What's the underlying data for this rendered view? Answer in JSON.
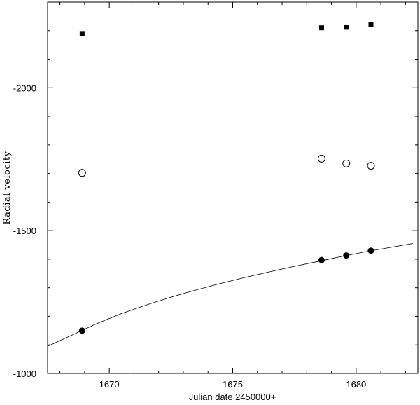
{
  "chart_data": {
    "type": "scatter",
    "title": "",
    "xlabel": "Julian date 2450000+",
    "ylabel": "Radial  velocity",
    "xlim": [
      1667.5,
      1682.5
    ],
    "ylim": [
      -1000,
      -2300
    ],
    "y_inverted": true,
    "x_ticks": [
      1670,
      1675,
      1680
    ],
    "x_tick_labels": [
      "1670",
      "1675",
      "1680"
    ],
    "y_ticks": [
      -1000,
      -1500,
      -2000
    ],
    "y_tick_labels": [
      "-1000",
      "-1500",
      "-2000"
    ],
    "grid": false,
    "legend": "none",
    "series": [
      {
        "marker": "filled-square",
        "color": "#000000",
        "points": [
          {
            "x": 1668.9,
            "y": -2190
          },
          {
            "x": 1678.6,
            "y": -2210
          },
          {
            "x": 1679.6,
            "y": -2212
          },
          {
            "x": 1680.6,
            "y": -2222
          }
        ]
      },
      {
        "marker": "open-circle",
        "color": "#000000",
        "points": [
          {
            "x": 1668.9,
            "y": -1702
          },
          {
            "x": 1678.6,
            "y": -1752
          },
          {
            "x": 1679.6,
            "y": -1735
          },
          {
            "x": 1680.6,
            "y": -1727
          }
        ]
      },
      {
        "marker": "filled-circle",
        "color": "#000000",
        "points": [
          {
            "x": 1668.9,
            "y": -1150
          },
          {
            "x": 1678.6,
            "y": -1397
          },
          {
            "x": 1679.6,
            "y": -1413
          },
          {
            "x": 1680.6,
            "y": -1430
          }
        ]
      },
      {
        "marker": "line",
        "color": "#000000",
        "points": [
          {
            "x": 1667.5,
            "y": -1095
          },
          {
            "x": 1668.5,
            "y": -1135
          },
          {
            "x": 1669.5,
            "y": -1175
          },
          {
            "x": 1670.5,
            "y": -1210
          },
          {
            "x": 1671.5,
            "y": -1240
          },
          {
            "x": 1672.5,
            "y": -1267
          },
          {
            "x": 1673.5,
            "y": -1292
          },
          {
            "x": 1674.5,
            "y": -1315
          },
          {
            "x": 1675.5,
            "y": -1336
          },
          {
            "x": 1676.5,
            "y": -1356
          },
          {
            "x": 1677.5,
            "y": -1375
          },
          {
            "x": 1678.5,
            "y": -1393
          },
          {
            "x": 1679.5,
            "y": -1411
          },
          {
            "x": 1680.5,
            "y": -1428
          },
          {
            "x": 1681.5,
            "y": -1443
          },
          {
            "x": 1682.3,
            "y": -1455
          }
        ]
      }
    ]
  }
}
